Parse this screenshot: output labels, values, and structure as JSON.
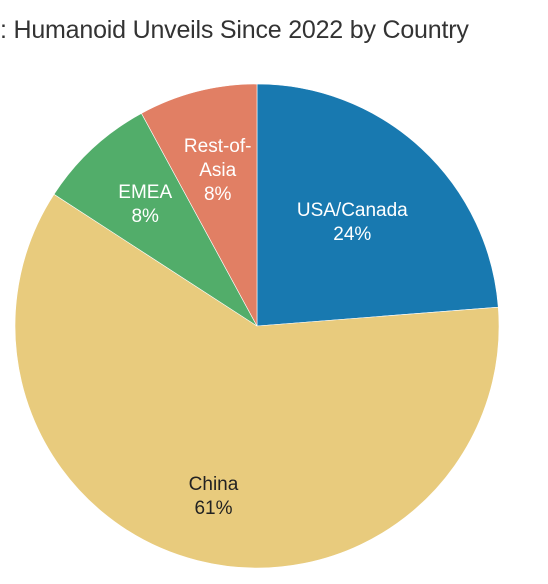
{
  "chart_data": {
    "type": "pie",
    "title": ":  Humanoid Unveils Since 2022 by Country",
    "slices": [
      {
        "label": [
          "USA/Canada"
        ],
        "pct_label": "24%",
        "value": 24,
        "color": "#1879b0",
        "text_color": "#ffffff"
      },
      {
        "label": [
          "China"
        ],
        "pct_label": "61%",
        "value": 61,
        "color": "#e8cb7d",
        "text_color": "#222222"
      },
      {
        "label": [
          "EMEA"
        ],
        "pct_label": "8%",
        "value": 8,
        "color": "#52ad6a",
        "text_color": "#ffffff"
      },
      {
        "label": [
          "Rest-of-",
          "Asia"
        ],
        "pct_label": "8%",
        "value": 8,
        "color": "#e17f64",
        "text_color": "#ffffff"
      }
    ],
    "start_angle": "12 o'clock",
    "direction": "clockwise",
    "legend": "none"
  }
}
